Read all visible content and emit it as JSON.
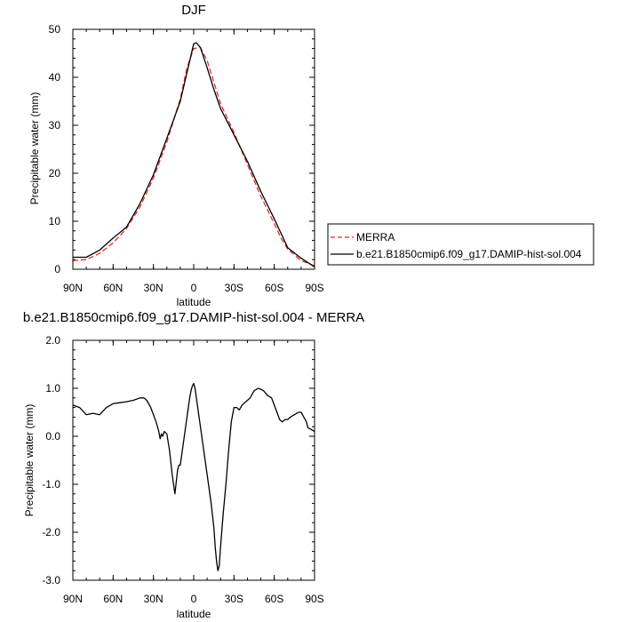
{
  "chart_data": [
    {
      "type": "line",
      "title": "DJF",
      "xlabel": "latitude",
      "ylabel": "Precipitable water (mm)",
      "xlim": [
        -90,
        90
      ],
      "ylim": [
        0,
        50
      ],
      "x_ticks": [
        {
          "value": -90,
          "label": "90N"
        },
        {
          "value": -60,
          "label": "60N"
        },
        {
          "value": -30,
          "label": "30N"
        },
        {
          "value": 0,
          "label": "0"
        },
        {
          "value": 30,
          "label": "30S"
        },
        {
          "value": 60,
          "label": "60S"
        },
        {
          "value": 90,
          "label": "90S"
        }
      ],
      "y_ticks": [
        {
          "value": 0,
          "label": "0"
        },
        {
          "value": 10,
          "label": "10"
        },
        {
          "value": 20,
          "label": "20"
        },
        {
          "value": 30,
          "label": "30"
        },
        {
          "value": 40,
          "label": "40"
        },
        {
          "value": 50,
          "label": "50"
        }
      ],
      "grid": false,
      "legend": {
        "placement": "right",
        "entries": [
          {
            "label": "MERRA",
            "color": "#e8292b",
            "dash": "dashed"
          },
          {
            "label": "b.e21.B1850cmip6.f09_g17.DAMIP-hist-sol.004",
            "color": "#000000",
            "dash": "solid"
          }
        ]
      },
      "series": [
        {
          "name": "MERRA",
          "color": "#e8292b",
          "dash": "dashed",
          "x": [
            -90,
            -80,
            -70,
            -60,
            -50,
            -40,
            -30,
            -20,
            -10,
            -5,
            0,
            5,
            10,
            15,
            20,
            30,
            40,
            50,
            60,
            65,
            70,
            80,
            90
          ],
          "y": [
            1.8,
            2.0,
            3.3,
            5.5,
            8.5,
            13.0,
            19.0,
            26.5,
            35.5,
            42.0,
            46.0,
            46.2,
            43.5,
            39.0,
            34.5,
            28.5,
            21.8,
            15.2,
            9.5,
            6.5,
            4.2,
            1.8,
            0.7
          ]
        },
        {
          "name": "b.e21.B1850cmip6.f09_g17.DAMIP-hist-sol.004",
          "color": "#000000",
          "dash": "solid",
          "x": [
            -90,
            -80,
            -70,
            -60,
            -50,
            -40,
            -30,
            -20,
            -10,
            -5,
            0,
            2,
            5,
            10,
            15,
            20,
            30,
            40,
            50,
            60,
            65,
            70,
            80,
            90
          ],
          "y": [
            2.5,
            2.5,
            4.0,
            6.5,
            8.8,
            13.7,
            19.7,
            27.3,
            35.0,
            41.0,
            47.0,
            47.2,
            46.2,
            42.0,
            37.5,
            33.5,
            28.0,
            22.5,
            16.2,
            10.5,
            7.5,
            4.5,
            2.3,
            0.5
          ]
        }
      ]
    },
    {
      "type": "line",
      "title": "b.e21.B1850cmip6.f09_g17.DAMIP-hist-sol.004 - MERRA",
      "xlabel": "latitude",
      "ylabel": "Precipitable water (mm)",
      "xlim": [
        -90,
        90
      ],
      "ylim": [
        -3.0,
        2.0
      ],
      "x_ticks": [
        {
          "value": -90,
          "label": "90N"
        },
        {
          "value": -60,
          "label": "60N"
        },
        {
          "value": -30,
          "label": "30N"
        },
        {
          "value": 0,
          "label": "0"
        },
        {
          "value": 30,
          "label": "30S"
        },
        {
          "value": 60,
          "label": "60S"
        },
        {
          "value": 90,
          "label": "90S"
        }
      ],
      "y_ticks": [
        {
          "value": -3.0,
          "label": "-3.0"
        },
        {
          "value": -2.0,
          "label": "-2.0"
        },
        {
          "value": -1.0,
          "label": "-1.0"
        },
        {
          "value": 0.0,
          "label": "0.0"
        },
        {
          "value": 1.0,
          "label": "1.0"
        },
        {
          "value": 2.0,
          "label": "2.0"
        }
      ],
      "grid": false,
      "series": [
        {
          "color": "#000000",
          "dash": "solid",
          "x": [
            -90,
            -85,
            -80,
            -75,
            -70,
            -65,
            -60,
            -55,
            -50,
            -45,
            -40,
            -37,
            -35,
            -32,
            -30,
            -28,
            -26,
            -25,
            -24,
            -23,
            -22,
            -20,
            -18,
            -16,
            -14,
            -12,
            -11,
            -10,
            -9,
            -8,
            -7,
            -6,
            -5,
            -4,
            -3,
            -2,
            -1,
            0,
            1,
            2,
            3,
            5,
            7,
            9,
            11,
            13,
            15,
            16,
            17,
            18,
            19,
            20,
            22,
            24,
            26,
            28,
            30,
            32,
            34,
            36,
            38,
            40,
            42,
            45,
            48,
            50,
            52,
            55,
            58,
            60,
            62,
            64,
            66,
            68,
            70,
            72,
            75,
            78,
            80,
            82,
            84,
            85,
            87,
            90
          ],
          "y": [
            0.65,
            0.6,
            0.45,
            0.48,
            0.45,
            0.6,
            0.68,
            0.7,
            0.72,
            0.75,
            0.8,
            0.8,
            0.75,
            0.6,
            0.45,
            0.3,
            0.1,
            -0.05,
            0.05,
            0.0,
            0.1,
            0.05,
            -0.3,
            -0.8,
            -1.2,
            -0.7,
            -0.6,
            -0.6,
            -0.4,
            -0.2,
            0.0,
            0.2,
            0.4,
            0.6,
            0.8,
            0.95,
            1.05,
            1.1,
            1.0,
            0.8,
            0.6,
            0.2,
            -0.2,
            -0.6,
            -1.0,
            -1.4,
            -1.9,
            -2.3,
            -2.6,
            -2.8,
            -2.7,
            -2.3,
            -1.6,
            -1.0,
            -0.3,
            0.3,
            0.6,
            0.6,
            0.55,
            0.65,
            0.7,
            0.75,
            0.8,
            0.95,
            1.0,
            0.98,
            0.95,
            0.85,
            0.8,
            0.65,
            0.5,
            0.35,
            0.3,
            0.35,
            0.35,
            0.4,
            0.45,
            0.5,
            0.5,
            0.4,
            0.3,
            0.18,
            0.15,
            0.1
          ]
        }
      ]
    }
  ]
}
